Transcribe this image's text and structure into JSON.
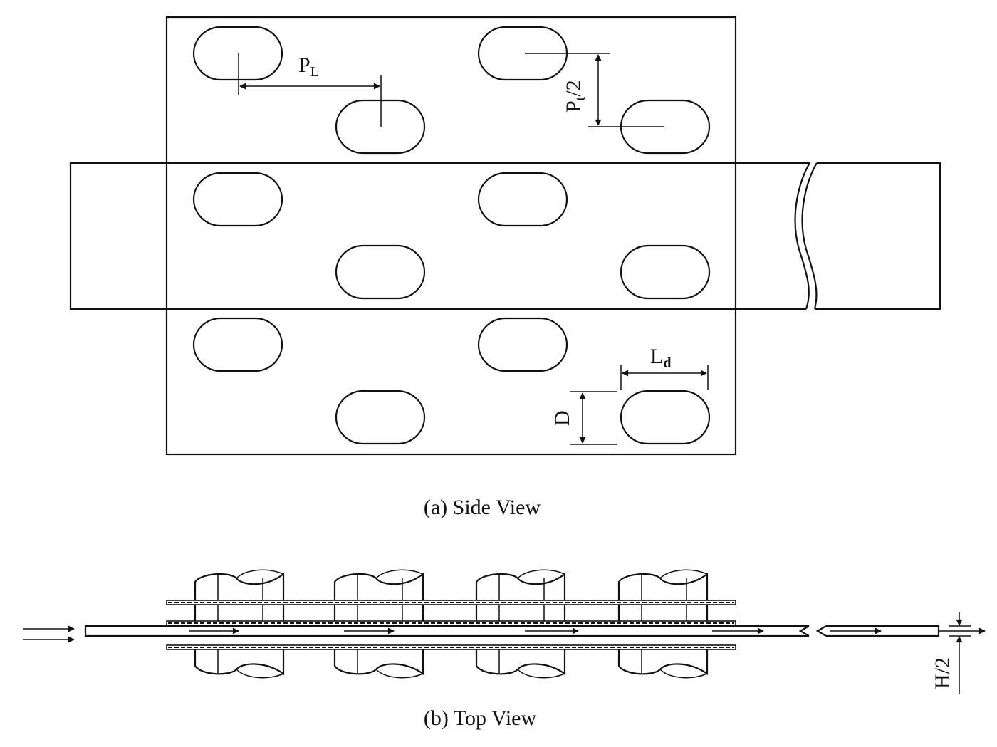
{
  "side_view": {
    "caption": "(a) Side View",
    "labels": {
      "pl_main": "P",
      "pl_sub": "L",
      "pt_main": "P",
      "pt_sub": "t",
      "pt_suffix": "/2",
      "ld_main": "L",
      "ld_sub": "d",
      "d": "D"
    }
  },
  "top_view": {
    "caption": "(b) Top View",
    "labels": {
      "h_half": "H/2"
    }
  },
  "colors": {
    "line": "#111111",
    "background": "#ffffff"
  }
}
